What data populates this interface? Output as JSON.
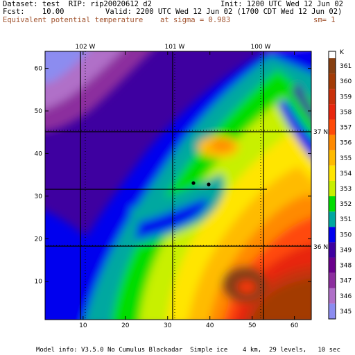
{
  "header": {
    "dataset_line": "Dataset: test  RIP: rip20020612 d2",
    "init_line": "Init: 1200 UTC Wed 12 Jun 02",
    "fcst_line": "Fcst:    10.00",
    "valid_line": "Valid: 2200 UTC Wed 12 Jun 02 (1700 CDT Wed 12 Jun 02)",
    "field_name": "Equivalent potential temperature",
    "sigma_text": "at sigma = 0.983",
    "sm_text": "sm= 1"
  },
  "footer": {
    "model_info": "Model info: V3.5.0 No Cumulus Blackadar  Simple ice    4 km,  29 levels,   10 sec"
  },
  "map": {
    "x_ticks": [
      "10",
      "20",
      "30",
      "40",
      "50",
      "60"
    ],
    "y_ticks": [
      "10",
      "20",
      "30",
      "40",
      "50",
      "60"
    ],
    "lon_labels": [
      "102 W",
      "101 W",
      "100 W"
    ],
    "lat_labels": [
      "37 N",
      "36 N"
    ]
  },
  "colorbar": {
    "unit": "K",
    "levels": [
      "361",
      "360",
      "359",
      "358",
      "357",
      "356",
      "355",
      "354",
      "353",
      "352",
      "351",
      "350",
      "349",
      "348",
      "347",
      "346",
      "345"
    ],
    "colors": [
      "#874012",
      "#a33b06",
      "#c8300a",
      "#e8260d",
      "#ff4a08",
      "#ff8a00",
      "#ffbb00",
      "#ffe500",
      "#c8f000",
      "#00dd00",
      "#00a8a0",
      "#0000ee",
      "#3e00a0",
      "#6a008c",
      "#8c2e9e",
      "#b070c8",
      "#8c8cf0"
    ]
  },
  "colors": {
    "header_text": "#000000",
    "field_text": "#a0522d"
  }
}
